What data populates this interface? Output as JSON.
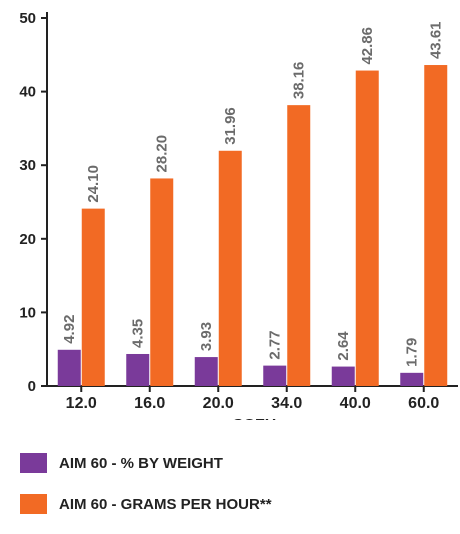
{
  "chart_data": {
    "type": "bar",
    "xlabel": "SCFH",
    "ylabel": "",
    "ylim": [
      0,
      50
    ],
    "yticks": [
      "0",
      "10",
      "20",
      "30",
      "40",
      "50"
    ],
    "categories": [
      "12.0",
      "16.0",
      "20.0",
      "34.0",
      "40.0",
      "60.0"
    ],
    "series": [
      {
        "name": "AIM 60 - % BY WEIGHT",
        "color": "#7a3a9a",
        "values": [
          4.92,
          4.35,
          3.93,
          2.77,
          2.64,
          1.79
        ],
        "labels": [
          "4.92",
          "4.35",
          "3.93",
          "2.77",
          "2.64",
          "1.79"
        ]
      },
      {
        "name": "AIM 60 - GRAMS PER HOUR**",
        "color": "#f26a24",
        "values": [
          24.1,
          28.2,
          31.96,
          38.16,
          42.86,
          43.61
        ],
        "labels": [
          "24.10",
          "28.20",
          "31.96",
          "38.16",
          "42.86",
          "43.61"
        ]
      }
    ],
    "grid": false,
    "legend_position": "bottom-left"
  },
  "legend": {
    "items": [
      {
        "label": "AIM 60 - % BY WEIGHT",
        "color": "#7a3a9a"
      },
      {
        "label": "AIM 60 - GRAMS PER HOUR**",
        "color": "#f26a24"
      }
    ]
  }
}
